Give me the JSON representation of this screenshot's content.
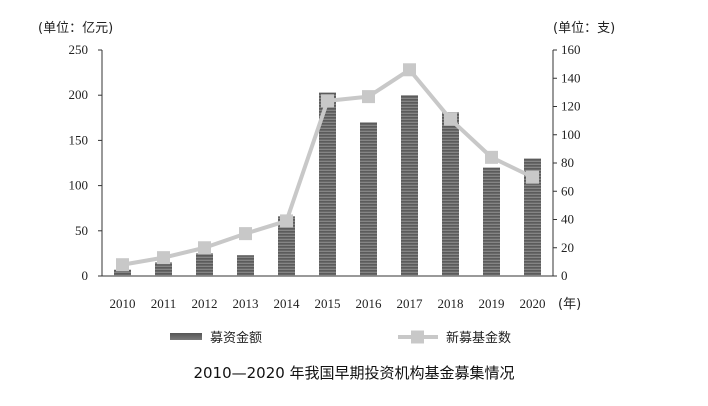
{
  "chart_data": {
    "type": "bar",
    "title": "2010—2020 年我国早期投资机构基金募集情况",
    "left_unit": "(单位：亿元)",
    "right_unit": "(单位：支)",
    "x_unit": "(年)",
    "categories": [
      "2010",
      "2011",
      "2012",
      "2013",
      "2014",
      "2015",
      "2016",
      "2017",
      "2018",
      "2019",
      "2020"
    ],
    "y_left": {
      "min": 0,
      "max": 250,
      "ticks": [
        0,
        50,
        100,
        150,
        200,
        250
      ]
    },
    "y_right": {
      "min": 0,
      "max": 160,
      "ticks": [
        0,
        20,
        40,
        60,
        80,
        100,
        120,
        140,
        160
      ]
    },
    "grid": false,
    "legend_position": "bottom",
    "series": [
      {
        "name": "募资金额",
        "type": "bar",
        "axis": "left",
        "color": "#6f6f6f",
        "values": [
          7,
          15,
          25,
          23,
          66,
          203,
          170,
          200,
          181,
          120,
          130
        ]
      },
      {
        "name": "新募基金数",
        "type": "line",
        "axis": "right",
        "color": "#c8c8c8",
        "values": [
          8,
          13,
          20,
          30,
          39,
          124,
          127,
          146,
          111,
          84,
          70
        ]
      }
    ]
  }
}
